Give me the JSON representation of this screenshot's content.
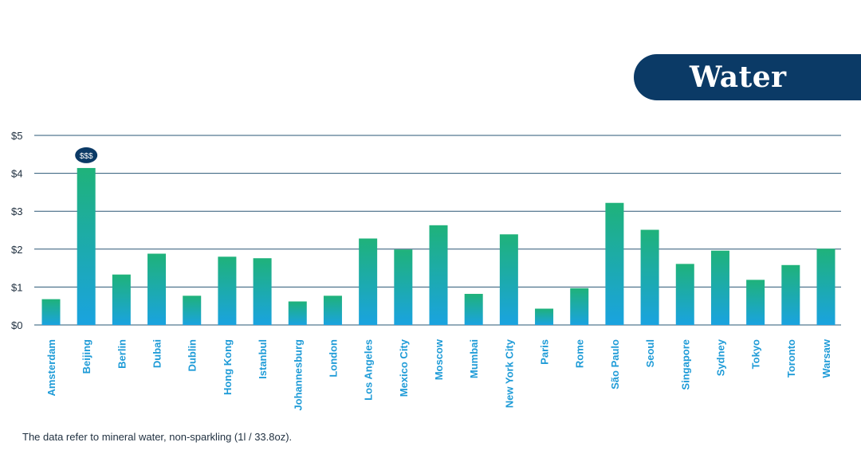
{
  "chart_data": {
    "type": "bar",
    "title": "Water",
    "categories": [
      "Amsterdam",
      "Beijing",
      "Berlin",
      "Dubai",
      "Dublin",
      "Hong Kong",
      "Istanbul",
      "Johannesburg",
      "London",
      "Los Angeles",
      "Mexico City",
      "Moscow",
      "Mumbai",
      "New York City",
      "Paris",
      "Rome",
      "São Paulo",
      "Seoul",
      "Singapore",
      "Sydney",
      "Tokyo",
      "Toronto",
      "Warsaw"
    ],
    "values": [
      0.68,
      4.14,
      1.33,
      1.88,
      0.77,
      1.8,
      1.76,
      0.62,
      0.77,
      2.28,
      1.99,
      2.63,
      0.82,
      2.39,
      0.43,
      0.97,
      3.22,
      2.51,
      1.61,
      1.96,
      1.19,
      1.58,
      2.01
    ],
    "ylim": [
      0,
      5
    ],
    "yticks": [
      "$0",
      "$1",
      "$2",
      "$3",
      "$4",
      "$5"
    ],
    "grid": true,
    "highlight": {
      "category": "Beijing",
      "label": "$$$"
    },
    "colors": {
      "bar_top": "#1fb27a",
      "bar_bottom": "#1aa3e0",
      "grid": "#2a5775",
      "badge": "#0b3a66",
      "title_bg": "#0b3a66",
      "label": "#1e9bd7"
    }
  },
  "footnote": "The data refer to mineral water, non-sparkling (1l / 33.8oz)."
}
